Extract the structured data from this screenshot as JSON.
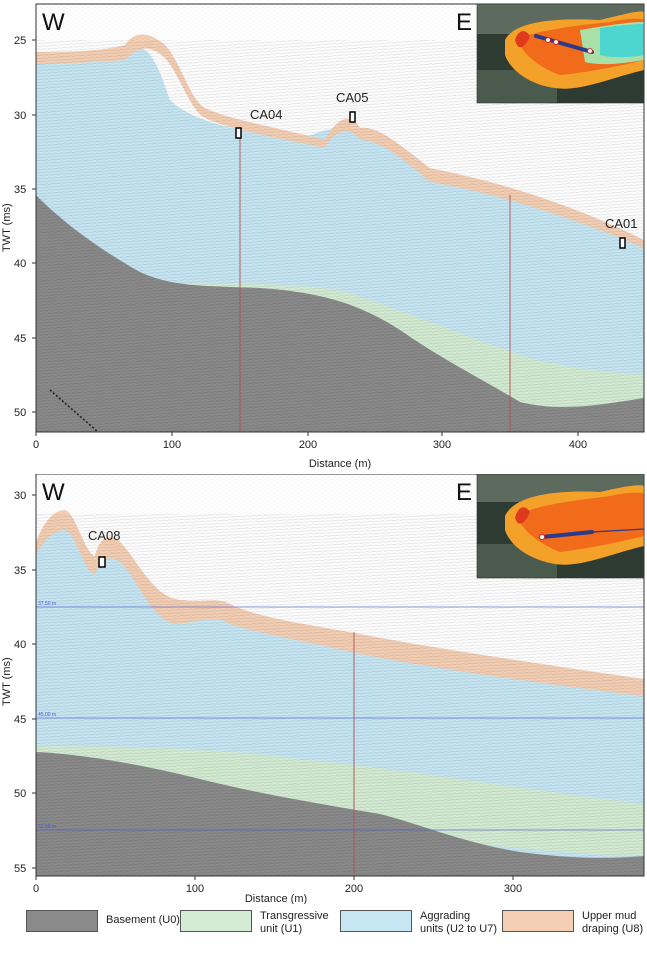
{
  "panels": [
    {
      "side_left": "W",
      "side_right": "E",
      "ylabel": "TWT (ms)",
      "xlabel": "Distance (m)",
      "yticks": [
        "25",
        "30",
        "35",
        "40",
        "45",
        "50"
      ],
      "xticks": [
        "0",
        "100",
        "200",
        "300",
        "400"
      ],
      "cores": [
        "CA04",
        "CA05",
        "CA01"
      ]
    },
    {
      "side_left": "W",
      "side_right": "E",
      "ylabel": "TWT (ms)",
      "xlabel": "Distance (m)",
      "yticks": [
        "30",
        "35",
        "40",
        "45",
        "50",
        "55"
      ],
      "xticks": [
        "0",
        "100",
        "200",
        "300"
      ],
      "cores": [
        "CA08"
      ],
      "guide_labels": [
        "37.50 m",
        "45.00 m",
        "52.50 m"
      ]
    }
  ],
  "legend": [
    {
      "lines": [
        "Basement (U0)"
      ],
      "color": "#8a8a8a"
    },
    {
      "lines": [
        "Transgressive",
        "unit (U1)"
      ],
      "color": "#d4ecd3"
    },
    {
      "lines": [
        "Aggrading",
        "units (U2 to U7)"
      ],
      "color": "#c6e6f3"
    },
    {
      "lines": [
        "Upper mud",
        "draping (U8)"
      ],
      "color": "#f4cfb4"
    }
  ],
  "colors": {
    "basement": "#8a8a8a",
    "transgressive": "#d4ecd3",
    "aggrading": "#c6e6f3",
    "mud": "#f4cfb4",
    "crossline": "#b05050",
    "guide": "#4a5bd0",
    "track": "#2a3a8c"
  }
}
